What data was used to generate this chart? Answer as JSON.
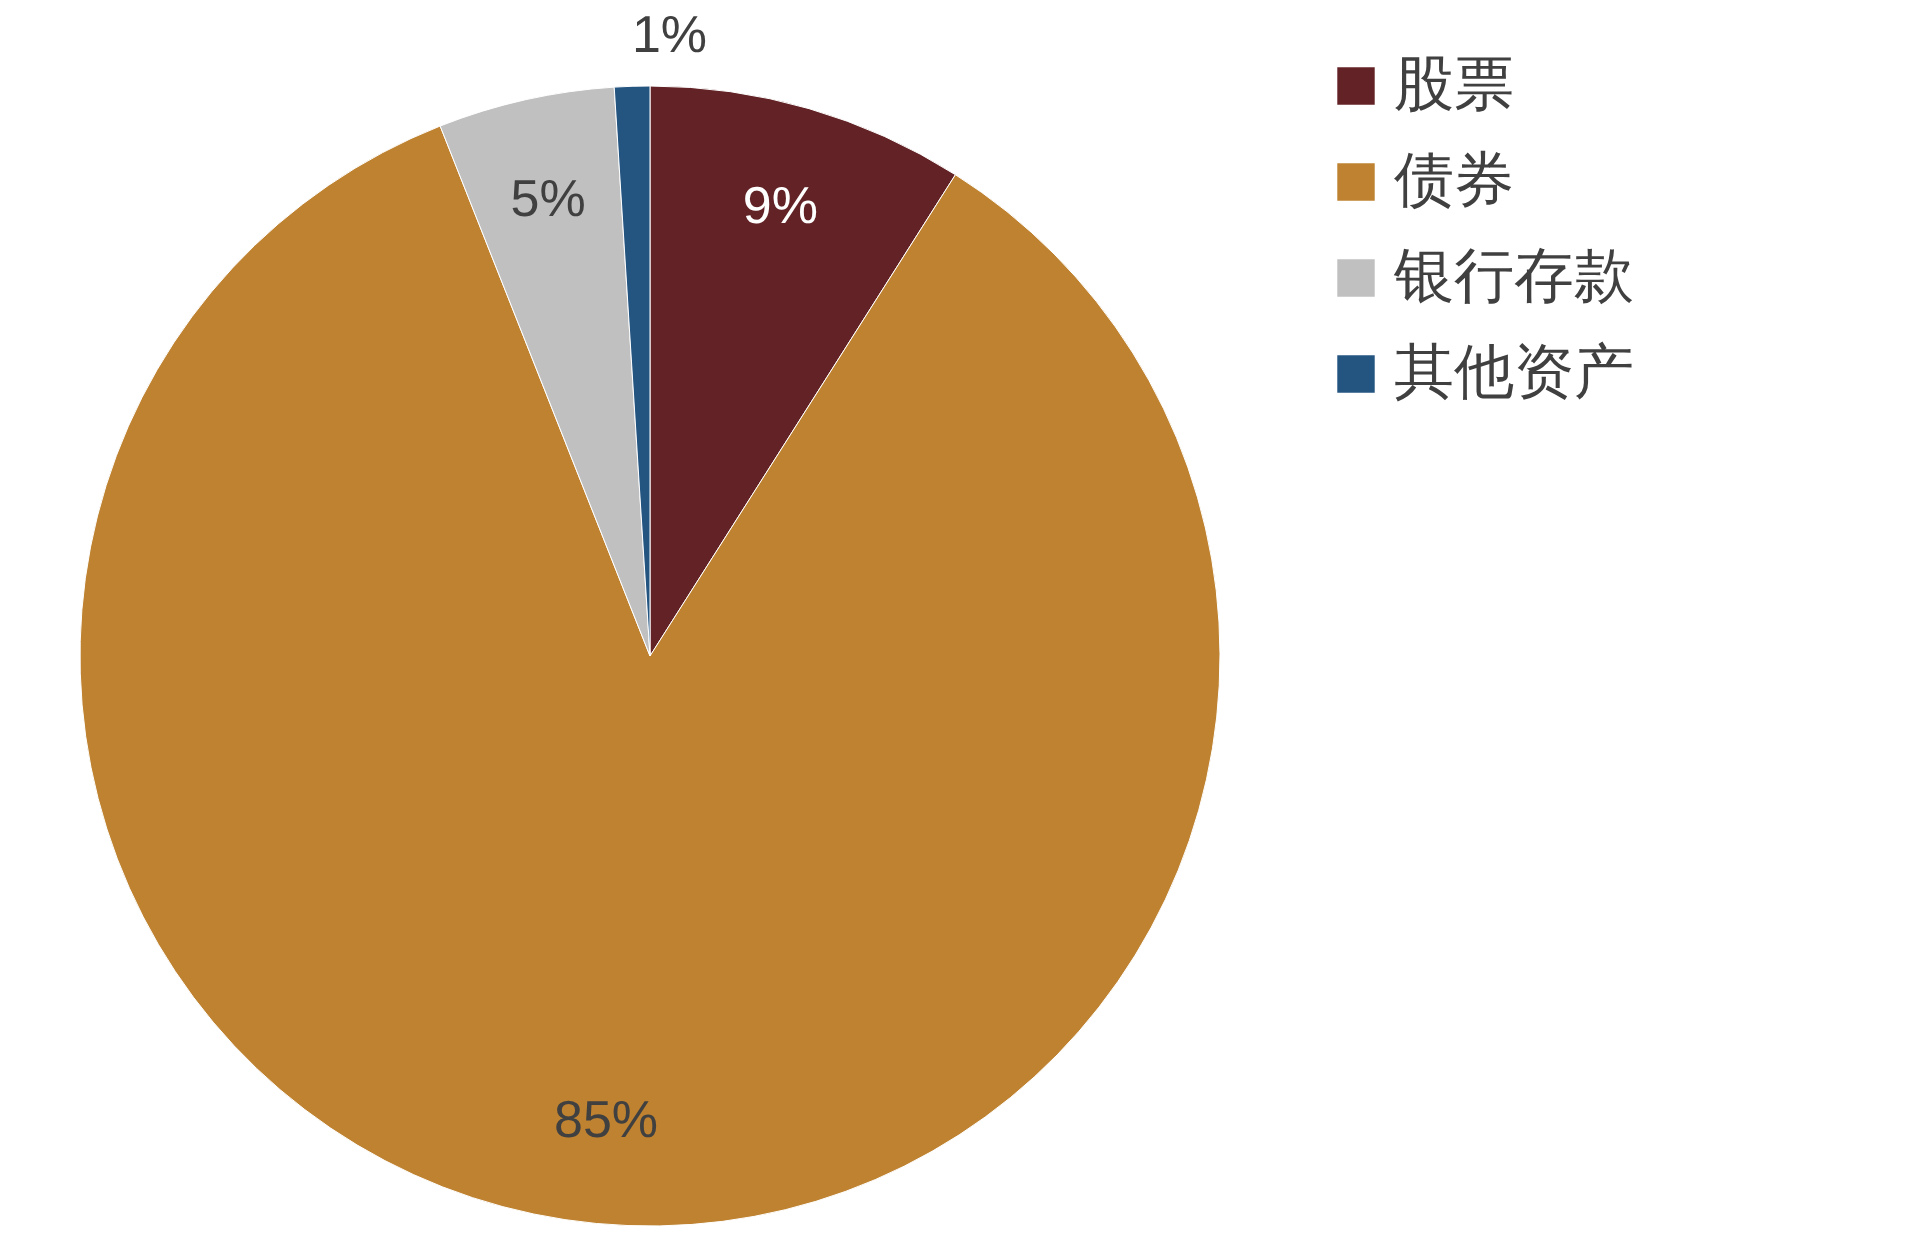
{
  "chart_data": {
    "type": "pie",
    "categories": [
      "股票",
      "债券",
      "银行存款",
      "其他资产"
    ],
    "values": [
      9,
      85,
      5,
      1
    ],
    "colors": [
      "#632326",
      "#be8230",
      "#c0c0c0",
      "#245480"
    ],
    "value_labels": [
      "9%",
      "85%",
      "5%",
      "1%"
    ],
    "legend": "right"
  }
}
